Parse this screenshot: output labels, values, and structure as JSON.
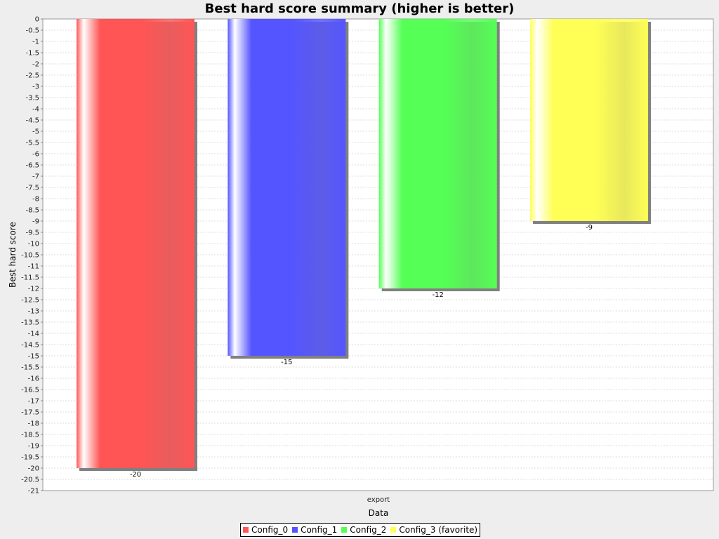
{
  "colors": {
    "background": "#eeeeee",
    "plot_background": "#ffffff",
    "gridline": "#d4d4d4",
    "shadow": "#808080"
  },
  "chart_data": {
    "type": "bar",
    "title": "Best hard score summary (higher is better)",
    "xlabel": "Data",
    "ylabel": "Best hard score",
    "categories": [
      "export"
    ],
    "ylim": [
      -21,
      0
    ],
    "ytick_step": 0.5,
    "grid": true,
    "legend_position": "bottom",
    "series": [
      {
        "name": "Config_0",
        "values": [
          -20
        ],
        "color": "#ff5555",
        "value_label": "-20"
      },
      {
        "name": "Config_1",
        "values": [
          -15
        ],
        "color": "#5555ff",
        "value_label": "-15"
      },
      {
        "name": "Config_2",
        "values": [
          -12
        ],
        "color": "#55ff55",
        "value_label": "-12"
      },
      {
        "name": "Config_3 (favorite)",
        "values": [
          -9
        ],
        "color": "#ffff55",
        "value_label": "-9"
      }
    ]
  }
}
